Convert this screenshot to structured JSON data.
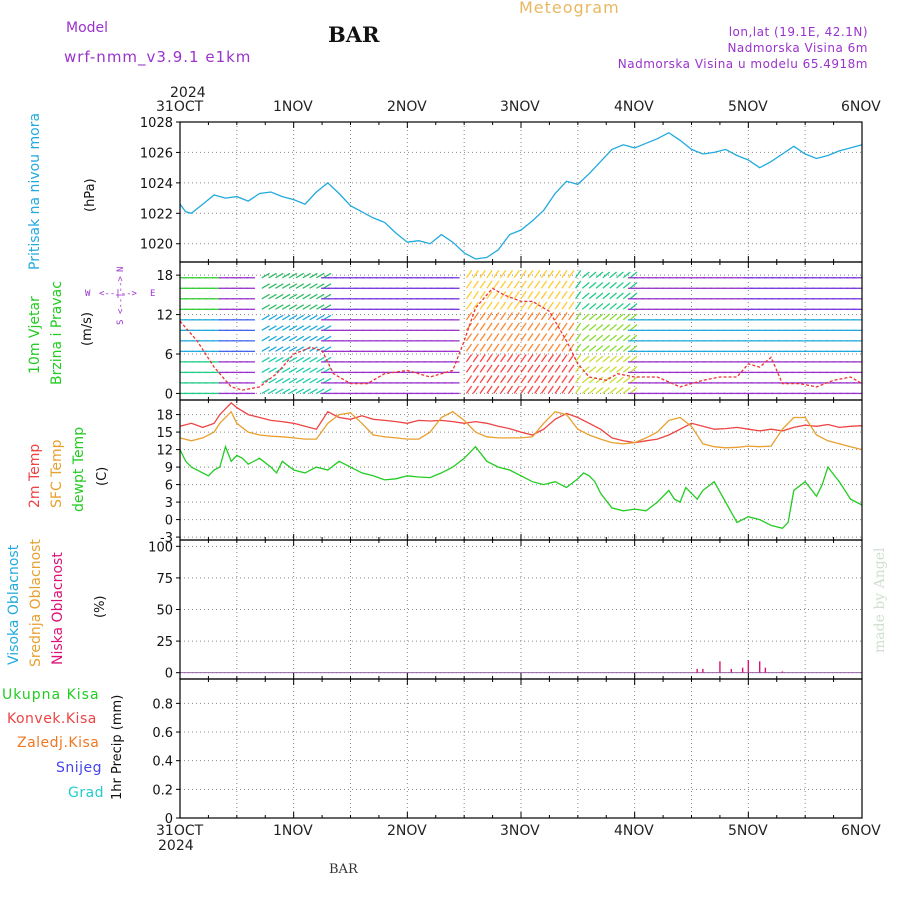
{
  "header": {
    "model_label": "Model",
    "model_name": "wrf-nmm_v3.9.1  e1km",
    "station": "BAR",
    "title": "Meteogram",
    "coords": "lon,lat (19.1E, 42.1N)",
    "elevation": "Nadmorska Visina 6m",
    "model_elevation": "Nadmorska Visina u modelu 65.4918m"
  },
  "footer": {
    "station": "BAR"
  },
  "watermark": "made by Angel",
  "time_axis": {
    "year": "2024",
    "ticks": [
      "31OCT",
      "1NOV",
      "2NOV",
      "3NOV",
      "4NOV",
      "5NOV",
      "6NOV"
    ]
  },
  "colors": {
    "pressure": "#22aadd",
    "temp2m": "#ee4444",
    "sfc": "#e8a030",
    "dewpt": "#22cc22",
    "purple": "#9933cc",
    "pink": "#dd1177",
    "gold": "#e8b860"
  },
  "panels": {
    "pressure": {
      "label": "Pritisak na nivou mora",
      "unit": "(hPa)"
    },
    "wind": {
      "label1": "10m Vjetar",
      "label2": "Brzina i Pravac",
      "unit": "(m/s)",
      "compass": {
        "n": "N",
        "s": "S",
        "w": "W",
        "e": "E"
      }
    },
    "temp": {
      "label1": "2m Temp",
      "label2": "SFC Temp",
      "label3": "dewpt Temp",
      "unit": "(C)"
    },
    "cloud": {
      "label1": "Visoka Oblacnost",
      "label2": "Srednja Oblacnost",
      "label3": "Niska Oblacnost",
      "unit": "(%)"
    },
    "precip": {
      "legend": [
        "Ukupna Kisa",
        "Konvek.Kisa",
        "Zaledj.Kisa",
        "Snijeg",
        "Grad"
      ],
      "unit": "1hr Precip (mm)"
    }
  },
  "chart_data": [
    {
      "type": "line",
      "panel": "pressure",
      "ylabel": "Pritisak na nivou mora (hPa)",
      "ylim": [
        1018.8,
        1028
      ],
      "yticks": [
        1020,
        1022,
        1024,
        1026,
        1028
      ],
      "series": [
        {
          "name": "Pritisak na nivou mora",
          "x": [
            0,
            0.05,
            0.1,
            0.2,
            0.3,
            0.4,
            0.5,
            0.6,
            0.7,
            0.8,
            0.9,
            1.0,
            1.1,
            1.2,
            1.3,
            1.4,
            1.5,
            1.6,
            1.7,
            1.8,
            1.9,
            2.0,
            2.1,
            2.2,
            2.3,
            2.4,
            2.5,
            2.6,
            2.7,
            2.8,
            2.9,
            3.0,
            3.1,
            3.2,
            3.3,
            3.4,
            3.5,
            3.6,
            3.7,
            3.8,
            3.9,
            4.0,
            4.1,
            4.2,
            4.3,
            4.4,
            4.5,
            4.6,
            4.7,
            4.8,
            4.9,
            5.0,
            5.1,
            5.2,
            5.3,
            5.4,
            5.5,
            5.6,
            5.7,
            5.8,
            5.9,
            6.0
          ],
          "y": [
            1022.6,
            1022.1,
            1022.0,
            1022.6,
            1023.2,
            1023.0,
            1023.1,
            1022.8,
            1023.3,
            1023.4,
            1023.1,
            1022.9,
            1022.6,
            1023.4,
            1024.0,
            1023.3,
            1022.5,
            1022.1,
            1021.7,
            1021.4,
            1020.7,
            1020.1,
            1020.2,
            1020.0,
            1020.6,
            1020.1,
            1019.4,
            1019.0,
            1019.1,
            1019.6,
            1020.6,
            1020.9,
            1021.5,
            1022.2,
            1023.3,
            1024.1,
            1023.9,
            1024.6,
            1025.4,
            1026.2,
            1026.5,
            1026.3,
            1026.6,
            1026.9,
            1027.3,
            1026.8,
            1026.2,
            1025.9,
            1026.0,
            1026.2,
            1025.8,
            1025.5,
            1025.0,
            1025.4,
            1025.9,
            1026.4,
            1025.9,
            1025.6,
            1025.8,
            1026.1,
            1026.3,
            1026.5
          ]
        }
      ]
    },
    {
      "type": "line",
      "panel": "wind",
      "ylabel": "10m Vjetar Brzina i Pravac (m/s)",
      "ylim": [
        -1,
        20
      ],
      "yticks": [
        0,
        6,
        12,
        18
      ],
      "series": [
        {
          "name": "10m Vjetar",
          "x": [
            0,
            0.15,
            0.3,
            0.45,
            0.55,
            0.7,
            0.85,
            1.0,
            1.15,
            1.25,
            1.35,
            1.5,
            1.65,
            1.8,
            2.0,
            2.2,
            2.4,
            2.5,
            2.6,
            2.75,
            2.85,
            3.0,
            3.1,
            3.25,
            3.4,
            3.5,
            3.6,
            3.75,
            3.85,
            4.0,
            4.2,
            4.4,
            4.5,
            4.6,
            4.75,
            4.9,
            5.0,
            5.1,
            5.2,
            5.3,
            5.45,
            5.6,
            5.75,
            5.9,
            6.0
          ],
          "y": [
            11,
            8,
            4,
            1,
            0.5,
            1,
            3,
            6,
            7,
            6.5,
            3,
            1.5,
            1.5,
            3,
            3.5,
            2.5,
            3.5,
            8,
            13,
            16,
            15,
            14,
            14,
            12.5,
            8,
            4.5,
            2.5,
            2,
            3,
            2.5,
            2.5,
            1,
            1.5,
            2,
            2.5,
            2.5,
            4.5,
            4,
            5.5,
            1.5,
            1.5,
            1,
            2,
            2.5,
            1.5
          ]
        }
      ]
    },
    {
      "type": "line",
      "panel": "temp",
      "ylabel": "(C)",
      "ylim": [
        -3.5,
        20.5
      ],
      "yticks": [
        -3,
        0,
        3,
        6,
        9,
        12,
        15,
        18
      ],
      "series": [
        {
          "name": "2m Temp",
          "x": [
            0,
            0.1,
            0.2,
            0.3,
            0.35,
            0.45,
            0.5,
            0.6,
            0.7,
            0.8,
            0.9,
            1.0,
            1.1,
            1.2,
            1.3,
            1.4,
            1.5,
            1.6,
            1.7,
            1.8,
            1.9,
            2.0,
            2.1,
            2.2,
            2.3,
            2.4,
            2.5,
            2.6,
            2.7,
            2.8,
            2.9,
            3.0,
            3.1,
            3.2,
            3.3,
            3.4,
            3.5,
            3.6,
            3.7,
            3.8,
            3.9,
            4.0,
            4.1,
            4.2,
            4.3,
            4.4,
            4.5,
            4.6,
            4.7,
            4.8,
            4.9,
            5.0,
            5.1,
            5.2,
            5.3,
            5.4,
            5.5,
            5.6,
            5.7,
            5.8,
            5.9,
            6.0
          ],
          "y": [
            16.0,
            16.5,
            15.8,
            16.5,
            18.0,
            20.0,
            19.2,
            18.0,
            17.5,
            17.0,
            16.8,
            16.5,
            16.0,
            15.5,
            18.5,
            17.5,
            17.2,
            17.8,
            17.2,
            17.0,
            16.8,
            16.5,
            17.0,
            16.9,
            17.0,
            16.8,
            16.5,
            16.8,
            16.5,
            16.0,
            15.6,
            15.0,
            14.5,
            15.5,
            17.2,
            18.2,
            17.5,
            16.5,
            15.5,
            14.0,
            13.5,
            13.2,
            13.5,
            13.8,
            14.5,
            15.5,
            16.5,
            16.0,
            15.5,
            15.6,
            15.8,
            15.5,
            15.2,
            15.5,
            15.2,
            15.8,
            16.2,
            16.0,
            16.3,
            15.8,
            16.0,
            16.1
          ]
        },
        {
          "name": "SFC Temp",
          "x": [
            0,
            0.1,
            0.2,
            0.3,
            0.35,
            0.45,
            0.5,
            0.6,
            0.7,
            0.8,
            0.9,
            1.0,
            1.1,
            1.2,
            1.3,
            1.4,
            1.5,
            1.6,
            1.7,
            1.8,
            1.9,
            2.0,
            2.1,
            2.2,
            2.3,
            2.4,
            2.5,
            2.6,
            2.7,
            2.8,
            2.9,
            3.0,
            3.1,
            3.2,
            3.3,
            3.4,
            3.5,
            3.6,
            3.7,
            3.8,
            3.9,
            4.0,
            4.1,
            4.2,
            4.3,
            4.4,
            4.5,
            4.6,
            4.7,
            4.8,
            4.9,
            5.0,
            5.1,
            5.2,
            5.3,
            5.4,
            5.5,
            5.6,
            5.7,
            5.8,
            5.9,
            6.0
          ],
          "y": [
            14.0,
            13.5,
            14.0,
            15.0,
            16.5,
            18.5,
            16.5,
            15.0,
            14.5,
            14.3,
            14.2,
            14.0,
            13.8,
            13.8,
            16.5,
            18.0,
            18.3,
            16.5,
            14.5,
            14.2,
            14.0,
            13.8,
            13.8,
            15.0,
            17.5,
            18.5,
            17.0,
            15.0,
            14.2,
            14.0,
            14.0,
            14.0,
            14.2,
            16.5,
            18.5,
            18.0,
            15.5,
            14.5,
            13.8,
            13.2,
            13.0,
            13.2,
            14.0,
            15.0,
            17.0,
            17.5,
            16.0,
            13.0,
            12.5,
            12.3,
            12.4,
            12.6,
            12.5,
            12.6,
            15.5,
            17.5,
            17.5,
            14.5,
            13.5,
            13.0,
            12.5,
            12.0
          ]
        },
        {
          "name": "dewpt Temp",
          "x": [
            0,
            0.05,
            0.1,
            0.2,
            0.25,
            0.3,
            0.35,
            0.4,
            0.45,
            0.5,
            0.55,
            0.6,
            0.7,
            0.8,
            0.85,
            0.9,
            1.0,
            1.1,
            1.2,
            1.3,
            1.4,
            1.5,
            1.6,
            1.7,
            1.8,
            1.9,
            2.0,
            2.1,
            2.2,
            2.3,
            2.4,
            2.5,
            2.6,
            2.7,
            2.8,
            2.9,
            3.0,
            3.1,
            3.2,
            3.3,
            3.4,
            3.5,
            3.55,
            3.6,
            3.65,
            3.7,
            3.8,
            3.9,
            4.0,
            4.1,
            4.2,
            4.3,
            4.35,
            4.4,
            4.45,
            4.5,
            4.55,
            4.6,
            4.7,
            4.8,
            4.9,
            5.0,
            5.1,
            5.2,
            5.3,
            5.35,
            5.4,
            5.5,
            5.6,
            5.65,
            5.7,
            5.8,
            5.9,
            6.0
          ],
          "y": [
            12.0,
            10.0,
            9.0,
            8.0,
            7.5,
            8.5,
            9.0,
            12.5,
            10.0,
            11.0,
            10.5,
            9.5,
            10.5,
            9.0,
            8.0,
            10.0,
            8.5,
            8.0,
            9.0,
            8.5,
            10.0,
            9.0,
            8.0,
            7.5,
            6.8,
            7.0,
            7.5,
            7.3,
            7.2,
            8.0,
            9.0,
            10.5,
            12.5,
            10.0,
            9.0,
            8.5,
            7.5,
            6.5,
            6.0,
            6.5,
            5.5,
            7.0,
            8.0,
            7.5,
            6.5,
            4.5,
            2.0,
            1.5,
            1.8,
            1.5,
            3.0,
            5.0,
            3.5,
            3.0,
            5.5,
            4.5,
            3.5,
            5.0,
            6.5,
            3.0,
            -0.5,
            0.5,
            0.0,
            -1.0,
            -1.5,
            -0.5,
            5.0,
            6.5,
            4.0,
            6.0,
            9.0,
            6.5,
            3.5,
            2.5
          ]
        }
      ]
    },
    {
      "type": "bar",
      "panel": "cloud",
      "ylabel": "(%)",
      "ylim": [
        -5,
        105
      ],
      "yticks": [
        0,
        25,
        50,
        75,
        100
      ],
      "series": [
        {
          "name": "Niska Oblacnost",
          "x": [
            4.55,
            4.6,
            4.75,
            4.85,
            4.95,
            5.0,
            5.1,
            5.15,
            5.3
          ],
          "y": [
            3,
            3,
            9,
            3,
            4,
            10,
            9,
            4,
            1
          ]
        }
      ]
    },
    {
      "type": "bar",
      "panel": "precip",
      "ylabel": "1hr Precip (mm)",
      "ylim": [
        0,
        0.97
      ],
      "yticks": [
        0,
        0.2,
        0.4,
        0.6,
        0.8
      ],
      "series": [
        {
          "name": "Ukupna Kisa",
          "x": [],
          "y": []
        }
      ]
    }
  ]
}
